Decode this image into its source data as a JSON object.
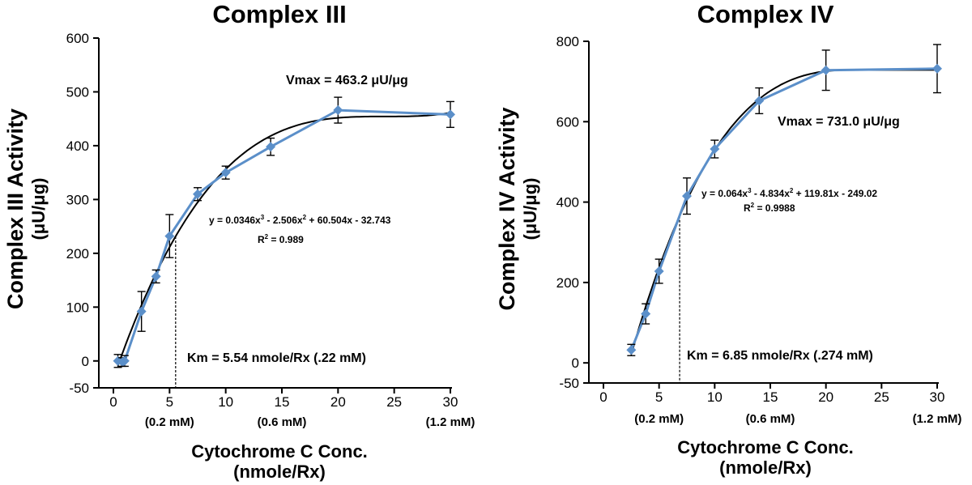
{
  "chart_data": [
    {
      "type": "line",
      "title": "Complex III",
      "ylabel": "Complex III Activity",
      "ylabel_unit": "(μU/μg)",
      "xlabel": "Cytochrome C Conc.",
      "xlabel_unit": "(nmole/Rx)",
      "xlim": [
        0,
        30
      ],
      "ylim": [
        -50,
        600
      ],
      "xticks": [
        0,
        5,
        10,
        15,
        20,
        25,
        30
      ],
      "yticks": [
        600,
        500,
        400,
        300,
        200,
        100,
        0,
        -50
      ],
      "sub_ticks": [
        {
          "x": 5,
          "label": "(0.2 mM)"
        },
        {
          "x": 15,
          "label": "(0.6 mM)"
        },
        {
          "x": 30,
          "label": "(1.2 mM)"
        }
      ],
      "series": [
        {
          "x": [
            0.4,
            0.8,
            1.0,
            2.5,
            3.8,
            5.0,
            7.5,
            10.0,
            14.0,
            20.0,
            30.0
          ],
          "y": [
            0,
            -2,
            0,
            92,
            157,
            232,
            310,
            350,
            398,
            466,
            458
          ],
          "err": [
            12,
            8,
            10,
            37,
            12,
            40,
            12,
            12,
            16,
            24,
            24
          ]
        }
      ],
      "fit": {
        "a": 0.0346,
        "b": -2.506,
        "c": 60.504,
        "d": -32.743
      },
      "equation": "y = 0.0346x",
      "equation_parts": [
        "y = 0.0346x",
        "3",
        " - 2.506x",
        "2",
        " + 60.504x - 32.743"
      ],
      "r2_prefix": "R",
      "r2_sup": "2",
      "r2_value": " = 0.989",
      "vmax": "Vmax = 463.2 μU/μg",
      "km": "Km = 5.54 nmole/Rx (.22 mM)",
      "km_x": 5.54
    },
    {
      "type": "line",
      "title": "Complex IV",
      "ylabel": "Complex IV Activity",
      "ylabel_unit": "(μU/μg)",
      "xlabel": "Cytochrome C Conc.",
      "xlabel_unit": "(nmole/Rx)",
      "xlim": [
        0,
        30
      ],
      "ylim": [
        -50,
        800
      ],
      "xticks": [
        0,
        5,
        10,
        15,
        20,
        25,
        30
      ],
      "yticks": [
        800,
        600,
        400,
        200,
        0,
        -50
      ],
      "sub_ticks": [
        {
          "x": 5,
          "label": "(0.2 mM)"
        },
        {
          "x": 15,
          "label": "(0.6 mM)"
        },
        {
          "x": 30,
          "label": "(1.2 mM)"
        }
      ],
      "series": [
        {
          "x": [
            2.5,
            3.8,
            5.0,
            7.5,
            10.0,
            14.0,
            20.0,
            30.0
          ],
          "y": [
            32,
            122,
            228,
            415,
            532,
            652,
            728,
            732
          ],
          "err": [
            14,
            25,
            30,
            45,
            22,
            32,
            50,
            60
          ]
        }
      ],
      "fit": {
        "a": 0.064,
        "b": -4.834,
        "c": 119.81,
        "d": -249.02
      },
      "equation_parts": [
        "y = 0.064x",
        "3",
        " - 4.834x",
        "2",
        " + 119.81x - 249.02"
      ],
      "r2_prefix": "R",
      "r2_sup": "2",
      "r2_value": " = 0.9988",
      "vmax": "Vmax = 731.0 μU/μg",
      "km": "Km = 6.85 nmole/Rx (.274 mM)",
      "km_x": 6.85
    }
  ]
}
